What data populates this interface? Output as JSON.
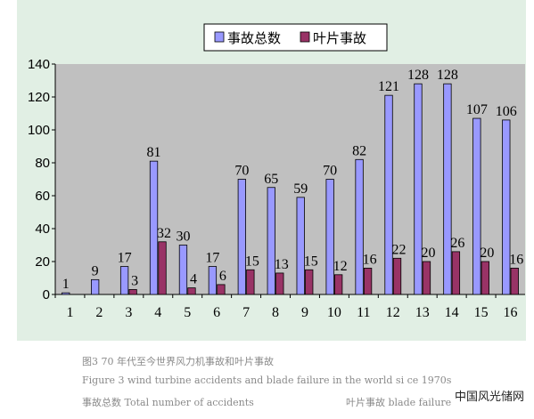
{
  "chart_data": {
    "type": "bar",
    "categories": [
      "1",
      "2",
      "3",
      "4",
      "5",
      "6",
      "7",
      "8",
      "9",
      "10",
      "11",
      "12",
      "13",
      "14",
      "15",
      "16"
    ],
    "series": [
      {
        "name": "事故总数",
        "values": [
          1,
          9,
          17,
          81,
          30,
          17,
          70,
          65,
          59,
          70,
          82,
          121,
          128,
          128,
          107,
          106
        ],
        "color": "#9999ff"
      },
      {
        "name": "叶片事故",
        "values": [
          0,
          0,
          3,
          32,
          4,
          6,
          15,
          13,
          15,
          12,
          16,
          22,
          20,
          26,
          20,
          16
        ],
        "color": "#993366"
      }
    ],
    "data_labels": [
      [
        "1",
        "9",
        "17",
        "81",
        "30",
        "17",
        "70",
        "65",
        "59",
        "70",
        "82",
        "121",
        "128",
        "128",
        "107",
        "106"
      ],
      [
        "",
        "",
        "3",
        "32",
        "4",
        "6",
        "15",
        "13",
        "15",
        "12",
        "16",
        "22",
        "20",
        "26",
        "20",
        "16"
      ]
    ],
    "yticks": [
      "0",
      "20",
      "40",
      "60",
      "80",
      "100",
      "120",
      "140"
    ],
    "ylim": [
      0,
      140
    ],
    "legend_position": "top-center",
    "plot_background": "#c0c0c0",
    "chart_background": "#e1efe4",
    "grid": false
  },
  "caption": {
    "line1": "图3 70 年代至今世界风力机事故和叶片事故",
    "line2": "Figure 3 wind turbine accidents and blade failure in the world si ce 1970s",
    "line3_left": "事故总数  Total number of accidents",
    "line3_right": "叶片事故  blade failure"
  },
  "watermark": "中国风光储网"
}
